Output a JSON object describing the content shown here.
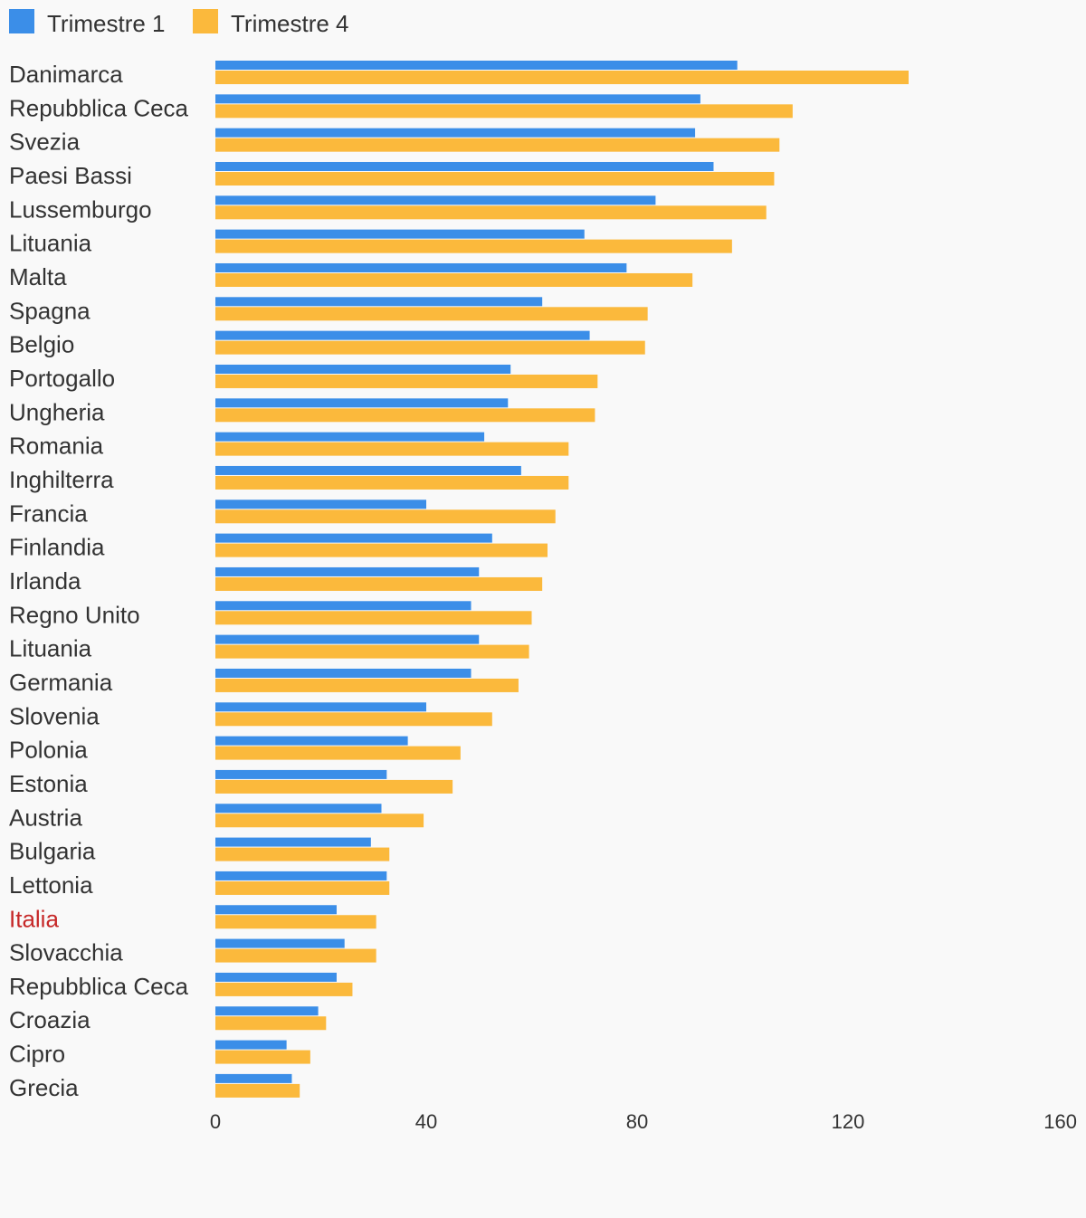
{
  "chart_data": {
    "type": "bar",
    "orientation": "horizontal",
    "title": "",
    "xlabel": "",
    "ylabel": "",
    "xlim": [
      0,
      160
    ],
    "x_ticks": [
      "0",
      "40",
      "80",
      "120",
      "160"
    ],
    "grid": false,
    "legend_position": "top-left",
    "highlight_category": "Italia",
    "highlight_color": "#c62828",
    "categories": [
      "Danimarca",
      "Repubblica Ceca",
      "Svezia",
      "Paesi Bassi",
      "Lussemburgo",
      "Lituania",
      "Malta",
      "Spagna",
      "Belgio",
      "Portogallo",
      "Ungheria",
      "Romania",
      "Inghilterra",
      "Francia",
      "Finlandia",
      "Irlanda",
      "Regno Unito",
      "Lituania",
      "Germania",
      "Slovenia",
      "Polonia",
      "Estonia",
      "Austria",
      "Bulgaria",
      "Lettonia",
      "Italia",
      "Slovacchia",
      "Repubblica Ceca",
      "Croazia",
      "Cipro",
      "Grecia"
    ],
    "series": [
      {
        "name": "Trimestre 1",
        "color": "#3b8ee8",
        "values": [
          99,
          92,
          91,
          94.5,
          83.5,
          70,
          78,
          62,
          71,
          56,
          55.5,
          51,
          58,
          40,
          52.5,
          50,
          48.5,
          50,
          48.5,
          40,
          36.5,
          32.5,
          31.5,
          29.5,
          32.5,
          23,
          24.5,
          23,
          19.5,
          13.5,
          14.5
        ]
      },
      {
        "name": "Trimestre 4",
        "color": "#fbb93c",
        "values": [
          131.5,
          109.5,
          107,
          106,
          104.5,
          98,
          90.5,
          82,
          81.5,
          72.5,
          72,
          67,
          67,
          64.5,
          63,
          62,
          60,
          59.5,
          57.5,
          52.5,
          46.5,
          45,
          39.5,
          33,
          33,
          30.5,
          30.5,
          26,
          21,
          18,
          16
        ]
      }
    ]
  }
}
